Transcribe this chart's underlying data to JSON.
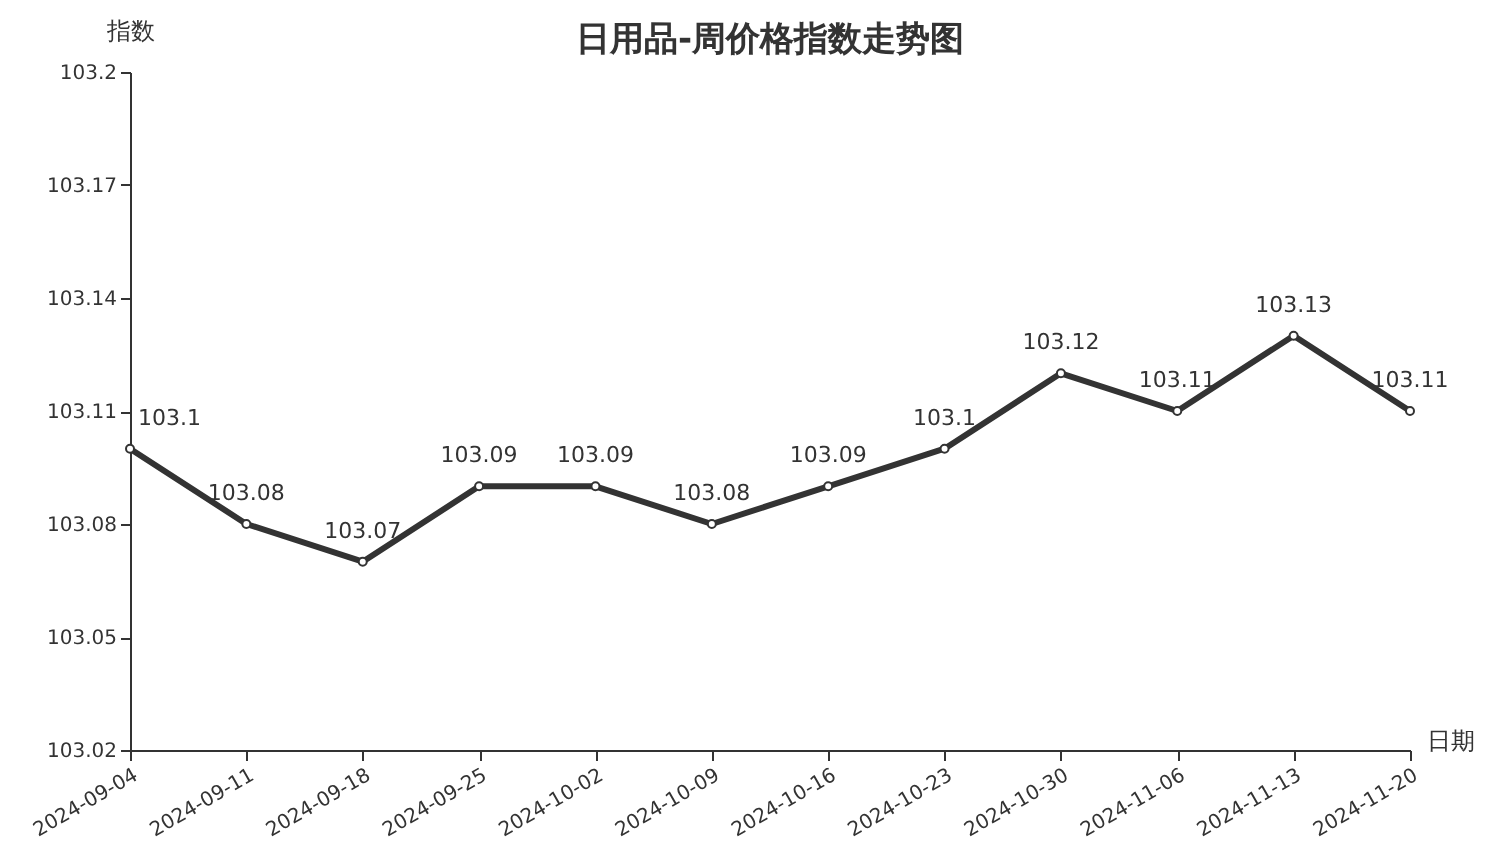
{
  "chart_data": {
    "type": "line",
    "title": "日用品-周价格指数走势图",
    "xlabel": "日期",
    "ylabel": "指数",
    "categories": [
      "2024-09-04",
      "2024-09-11",
      "2024-09-18",
      "2024-09-25",
      "2024-10-02",
      "2024-10-09",
      "2024-10-16",
      "2024-10-23",
      "2024-10-30",
      "2024-11-06",
      "2024-11-13",
      "2024-11-20"
    ],
    "series": [
      {
        "color": "#333333",
        "values": [
          103.1,
          103.08,
          103.07,
          103.09,
          103.09,
          103.08,
          103.09,
          103.1,
          103.12,
          103.11,
          103.13,
          103.11
        ]
      }
    ],
    "ylim": [
      103.02,
      103.2
    ],
    "yticks": [
      103.02,
      103.05,
      103.08,
      103.11,
      103.14,
      103.17,
      103.2
    ],
    "data_labels": true,
    "marker": "circle",
    "line_style": "solid",
    "grid": false
  }
}
